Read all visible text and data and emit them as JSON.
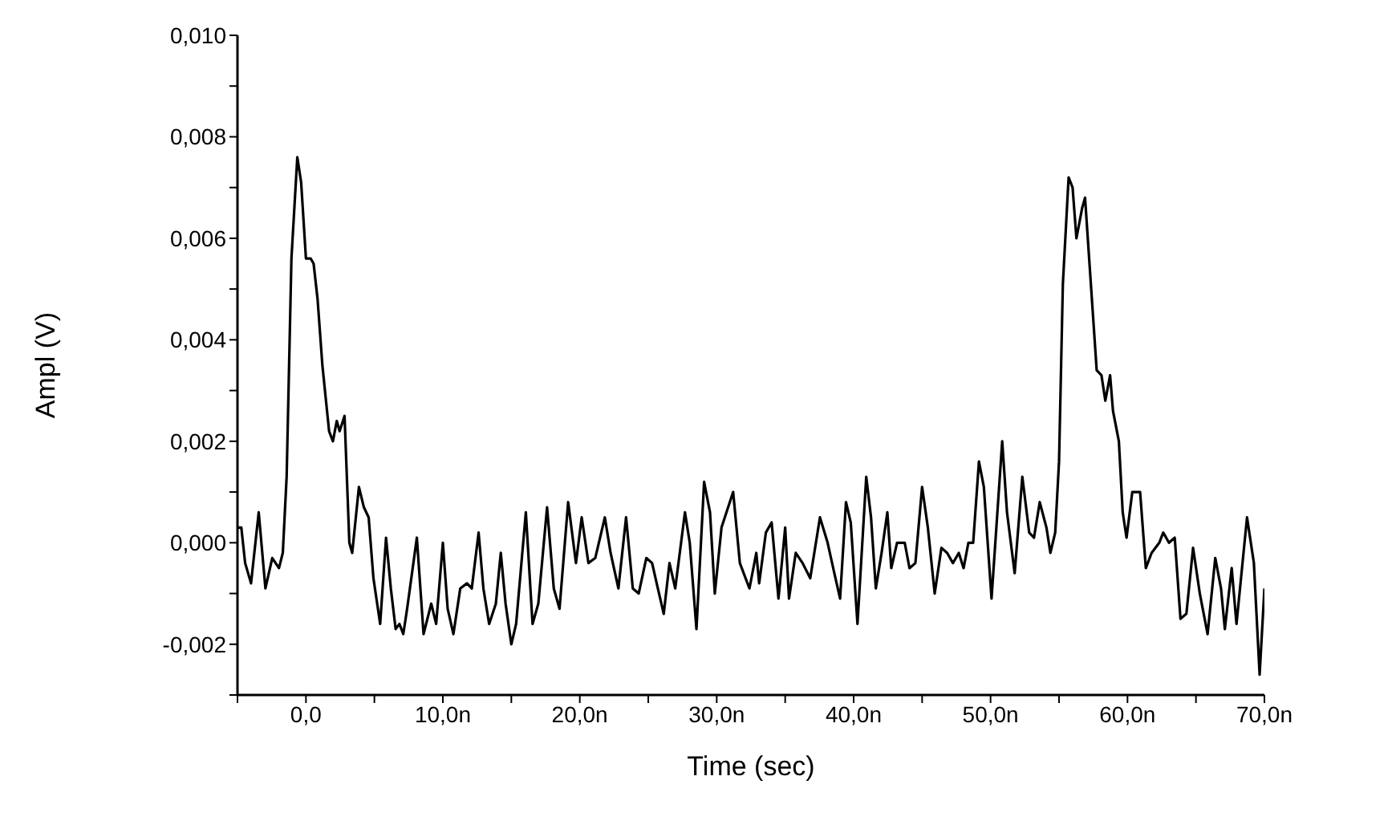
{
  "chart_data": {
    "type": "line",
    "xlabel": "Time (sec)",
    "ylabel": "Ampl (V)",
    "line_style": "solid",
    "xlim": [
      -5,
      70
    ],
    "ylim": [
      -0.003,
      0.01
    ],
    "xticks": [
      {
        "value": -5,
        "label": null
      },
      {
        "value": 0,
        "label": "0,0"
      },
      {
        "value": 5,
        "label": null
      },
      {
        "value": 10,
        "label": "10,0n"
      },
      {
        "value": 15,
        "label": null
      },
      {
        "value": 20,
        "label": "20,0n"
      },
      {
        "value": 25,
        "label": null
      },
      {
        "value": 30,
        "label": "30,0n"
      },
      {
        "value": 35,
        "label": null
      },
      {
        "value": 40,
        "label": "40,0n"
      },
      {
        "value": 45,
        "label": null
      },
      {
        "value": 50,
        "label": "50,0n"
      },
      {
        "value": 55,
        "label": null
      },
      {
        "value": 60,
        "label": "60,0n"
      },
      {
        "value": 65,
        "label": null
      },
      {
        "value": 70,
        "label": "70,0n"
      }
    ],
    "yticks": [
      {
        "value": -0.003,
        "label": null
      },
      {
        "value": -0.002,
        "label": "-0,002"
      },
      {
        "value": -0.001,
        "label": null
      },
      {
        "value": 0,
        "label": "0,000"
      },
      {
        "value": 0.001,
        "label": null
      },
      {
        "value": 0.002,
        "label": "0,002"
      },
      {
        "value": 0.003,
        "label": null
      },
      {
        "value": 0.004,
        "label": "0,004"
      },
      {
        "value": 0.005,
        "label": null
      },
      {
        "value": 0.006,
        "label": "0,006"
      },
      {
        "value": 0.007,
        "label": null
      },
      {
        "value": 0.008,
        "label": "0,008"
      },
      {
        "value": 0.009,
        "label": null
      },
      {
        "value": 0.01,
        "label": "0,010"
      }
    ],
    "series": [
      {
        "color": "#000000",
        "x": [
          -5.0,
          -4.72,
          -4.44,
          -4.01,
          -3.45,
          -2.96,
          -2.46,
          -1.97,
          -1.69,
          -1.41,
          -1.06,
          -0.63,
          -0.35,
          0,
          0.35,
          0.56,
          0.85,
          1.2,
          1.69,
          1.97,
          2.25,
          2.46,
          2.82,
          3.17,
          3.38,
          3.87,
          4.23,
          4.58,
          4.93,
          5.42,
          5.85,
          6.2,
          6.55,
          6.83,
          7.11,
          7.39,
          8.1,
          8.59,
          9.15,
          9.51,
          10.0,
          10.35,
          10.77,
          11.27,
          11.76,
          12.11,
          12.61,
          12.96,
          13.38,
          13.87,
          14.23,
          14.58,
          15.0,
          15.35,
          16.06,
          16.55,
          16.97,
          17.61,
          18.1,
          18.52,
          19.15,
          19.72,
          20.14,
          20.63,
          21.13,
          21.83,
          22.25,
          22.82,
          23.38,
          23.87,
          24.3,
          24.86,
          25.28,
          25.7,
          26.13,
          26.55,
          26.97,
          27.68,
          28.03,
          28.52,
          29.08,
          29.51,
          29.86,
          30.35,
          31.2,
          31.69,
          32.39,
          32.89,
          33.1,
          33.59,
          34.01,
          34.51,
          35.0,
          35.28,
          35.77,
          36.27,
          36.83,
          37.54,
          38.1,
          38.59,
          39.01,
          39.44,
          39.79,
          40.28,
          40.92,
          41.27,
          41.62,
          42.04,
          42.46,
          42.75,
          43.17,
          43.73,
          44.08,
          44.51,
          45.0,
          45.42,
          45.92,
          46.41,
          46.83,
          47.25,
          47.68,
          48.03,
          48.38,
          48.73,
          49.15,
          49.51,
          50.07,
          50.85,
          51.2,
          51.76,
          52.32,
          52.82,
          53.17,
          53.59,
          54.08,
          54.37,
          54.72,
          55.0,
          55.28,
          55.7,
          55.99,
          56.27,
          56.69,
          56.9,
          57.25,
          57.75,
          58.1,
          58.38,
          58.73,
          58.94,
          59.37,
          59.65,
          59.93,
          60.35,
          60.92,
          61.34,
          61.76,
          62.32,
          62.61,
          63.03,
          63.45,
          63.87,
          64.3,
          64.79,
          65.28,
          65.85,
          66.41,
          66.83,
          67.11,
          67.61,
          67.96,
          68.73,
          69.23,
          69.65,
          70.0
        ],
        "values": [
          0.0003,
          0.0003,
          -0.0004,
          -0.0008,
          0.0006,
          -0.0009,
          -0.0003,
          -0.0005,
          -0.0002,
          0.0013,
          0.0056,
          0.0076,
          0.0071,
          0.0056,
          0.0056,
          0.0055,
          0.0048,
          0.0035,
          0.0022,
          0.002,
          0.0024,
          0.0022,
          0.0025,
          0.0,
          -0.0002,
          0.0011,
          0.0007,
          0.0005,
          -0.0007,
          -0.0016,
          0.0001,
          -0.0009,
          -0.0017,
          -0.0016,
          -0.0018,
          -0.0013,
          0.0001,
          -0.0018,
          -0.0012,
          -0.0016,
          0.0,
          -0.0013,
          -0.0018,
          -0.0009,
          -0.0008,
          -0.0009,
          0.0002,
          -0.0009,
          -0.0016,
          -0.0012,
          -0.0002,
          -0.0012,
          -0.002,
          -0.0016,
          0.0006,
          -0.0016,
          -0.0012,
          0.0007,
          -0.0009,
          -0.0013,
          0.0008,
          -0.0004,
          0.0005,
          -0.0004,
          -0.0003,
          0.0005,
          -0.0002,
          -0.0009,
          0.0005,
          -0.0009,
          -0.001,
          -0.0003,
          -0.0004,
          -0.0009,
          -0.0014,
          -0.0004,
          -0.0009,
          0.0006,
          0.0,
          -0.0017,
          0.0012,
          0.0006,
          -0.001,
          0.0003,
          0.001,
          -0.0004,
          -0.0009,
          -0.0002,
          -0.0008,
          0.0002,
          0.0004,
          -0.0011,
          0.0003,
          -0.0011,
          -0.0002,
          -0.0004,
          -0.0007,
          0.0005,
          0.0,
          -0.0006,
          -0.0011,
          0.0008,
          0.0004,
          -0.0016,
          0.0013,
          0.0005,
          -0.0009,
          -0.0002,
          0.0006,
          -0.0005,
          0.0,
          0.0,
          -0.0005,
          -0.0004,
          0.0011,
          0.0003,
          -0.001,
          -0.0001,
          -0.0002,
          -0.0004,
          -0.0002,
          -0.0005,
          0.0,
          0.0,
          0.0016,
          0.0011,
          -0.0011,
          0.002,
          0.0006,
          -0.0006,
          0.0013,
          0.0002,
          0.0001,
          0.0008,
          0.0003,
          -0.0002,
          0.0002,
          0.0016,
          0.0051,
          0.0072,
          0.007,
          0.006,
          0.0066,
          0.0068,
          0.0054,
          0.0034,
          0.0033,
          0.0028,
          0.0033,
          0.0026,
          0.002,
          0.0006,
          0.0001,
          0.001,
          0.001,
          -0.0005,
          -0.0002,
          0.0,
          0.0002,
          0.0,
          0.0001,
          -0.0015,
          -0.0014,
          -0.0001,
          -0.001,
          -0.0018,
          -0.0003,
          -0.0009,
          -0.0017,
          -0.0005,
          -0.0016,
          0.0005,
          -0.0004,
          -0.0026,
          -0.0009
        ]
      }
    ]
  }
}
